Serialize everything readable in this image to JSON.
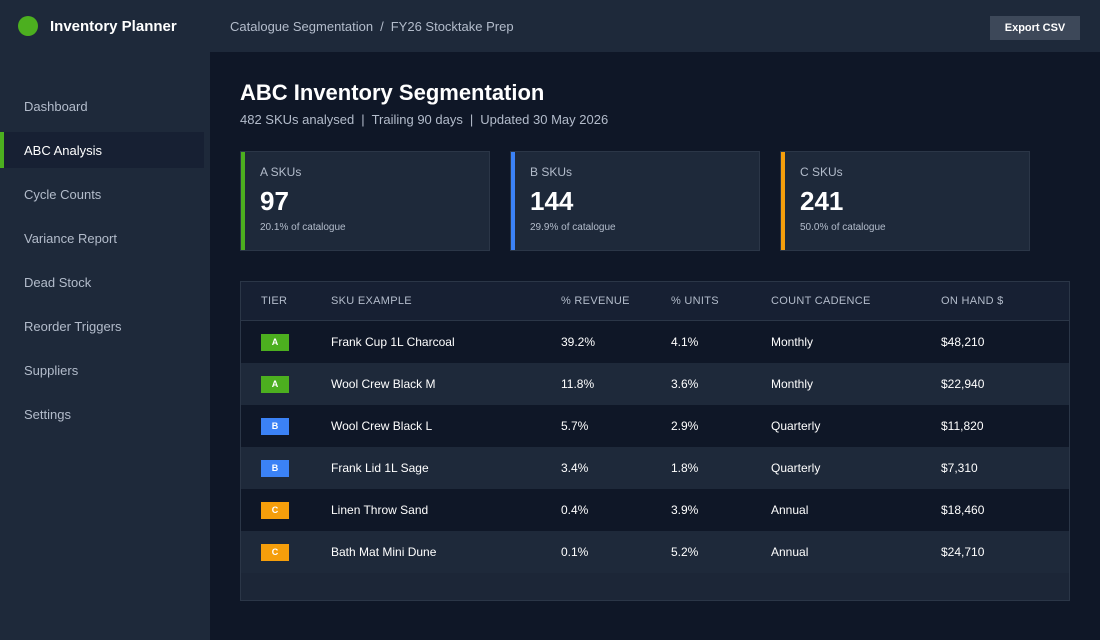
{
  "app": {
    "title": "Inventory Planner",
    "brand_color": "#4caf1f"
  },
  "breadcrumb": [
    "Catalogue Segmentation",
    "FY26 Stocktake Prep"
  ],
  "breadcrumb_sep": "/",
  "header": {
    "export_label": "Export CSV"
  },
  "sidebar": {
    "items": [
      {
        "label": "Dashboard",
        "active": false
      },
      {
        "label": "ABC Analysis",
        "active": true
      },
      {
        "label": "Cycle Counts",
        "active": false
      },
      {
        "label": "Variance Report",
        "active": false
      },
      {
        "label": "Dead Stock",
        "active": false
      },
      {
        "label": "Reorder Triggers",
        "active": false
      },
      {
        "label": "Suppliers",
        "active": false
      },
      {
        "label": "Settings",
        "active": false
      }
    ]
  },
  "page": {
    "title": "ABC Inventory Segmentation",
    "subtitle": [
      "482 SKUs analysed",
      "Trailing 90 days",
      "Updated 30 May 2026"
    ],
    "subtitle_sep": "|"
  },
  "cards": [
    {
      "label": "A SKUs",
      "value": "97",
      "note": "20.1% of catalogue",
      "color": "#4caf1f"
    },
    {
      "label": "B SKUs",
      "value": "144",
      "note": "29.9% of catalogue",
      "color": "#3b82f6"
    },
    {
      "label": "C SKUs",
      "value": "241",
      "note": "50.0% of catalogue",
      "color": "#f59e0b"
    }
  ],
  "table": {
    "columns": [
      "TIER",
      "SKU EXAMPLE",
      "% REVENUE",
      "% UNITS",
      "COUNT CADENCE",
      "ON HAND $"
    ],
    "tier_colors": {
      "A": "#4caf1f",
      "B": "#3b82f6",
      "C": "#f59e0b"
    },
    "rows": [
      {
        "tier": "A",
        "sku": "Frank Cup 1L Charcoal",
        "revenue": "39.2%",
        "units": "4.1%",
        "cadence": "Monthly",
        "on_hand": "$48,210"
      },
      {
        "tier": "A",
        "sku": "Wool Crew Black M",
        "revenue": "11.8%",
        "units": "3.6%",
        "cadence": "Monthly",
        "on_hand": "$22,940"
      },
      {
        "tier": "B",
        "sku": "Wool Crew Black L",
        "revenue": "5.7%",
        "units": "2.9%",
        "cadence": "Quarterly",
        "on_hand": "$11,820"
      },
      {
        "tier": "B",
        "sku": "Frank Lid 1L Sage",
        "revenue": "3.4%",
        "units": "1.8%",
        "cadence": "Quarterly",
        "on_hand": "$7,310"
      },
      {
        "tier": "C",
        "sku": "Linen Throw Sand",
        "revenue": "0.4%",
        "units": "3.9%",
        "cadence": "Annual",
        "on_hand": "$18,460"
      },
      {
        "tier": "C",
        "sku": "Bath Mat Mini Dune",
        "revenue": "0.1%",
        "units": "5.2%",
        "cadence": "Annual",
        "on_hand": "$24,710"
      }
    ]
  }
}
